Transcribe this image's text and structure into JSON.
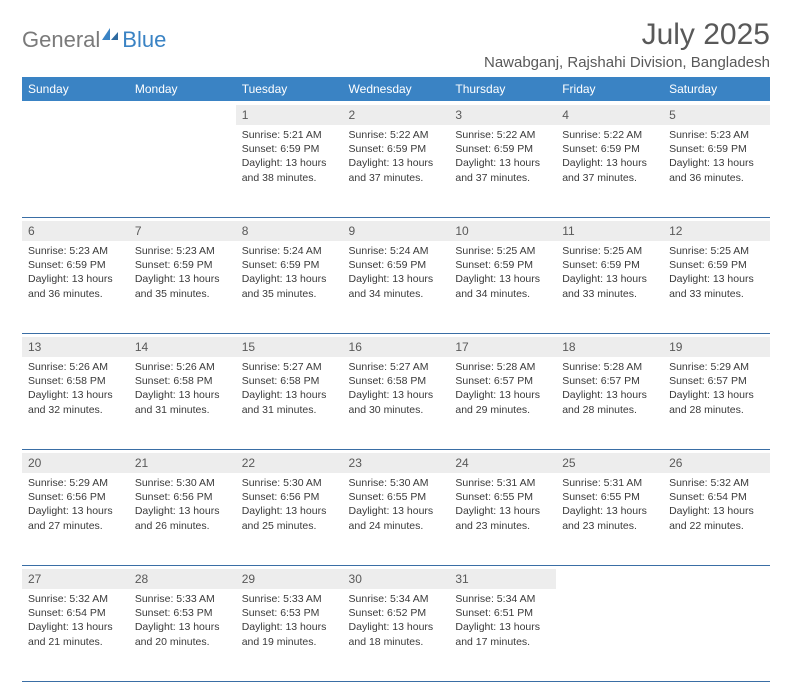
{
  "logo": {
    "text1": "General",
    "text2": "Blue"
  },
  "title": "July 2025",
  "location": "Nawabganj, Rajshahi Division, Bangladesh",
  "colors": {
    "header_bg": "#3a83c4",
    "header_text": "#ffffff",
    "daynum_bg": "#ededed",
    "text_gray": "#595959",
    "rule": "#3a6ea5"
  },
  "day_headers": [
    "Sunday",
    "Monday",
    "Tuesday",
    "Wednesday",
    "Thursday",
    "Friday",
    "Saturday"
  ],
  "weeks": [
    [
      null,
      null,
      {
        "n": "1",
        "sr": "5:21 AM",
        "ss": "6:59 PM",
        "dl": "13 hours and 38 minutes."
      },
      {
        "n": "2",
        "sr": "5:22 AM",
        "ss": "6:59 PM",
        "dl": "13 hours and 37 minutes."
      },
      {
        "n": "3",
        "sr": "5:22 AM",
        "ss": "6:59 PM",
        "dl": "13 hours and 37 minutes."
      },
      {
        "n": "4",
        "sr": "5:22 AM",
        "ss": "6:59 PM",
        "dl": "13 hours and 37 minutes."
      },
      {
        "n": "5",
        "sr": "5:23 AM",
        "ss": "6:59 PM",
        "dl": "13 hours and 36 minutes."
      }
    ],
    [
      {
        "n": "6",
        "sr": "5:23 AM",
        "ss": "6:59 PM",
        "dl": "13 hours and 36 minutes."
      },
      {
        "n": "7",
        "sr": "5:23 AM",
        "ss": "6:59 PM",
        "dl": "13 hours and 35 minutes."
      },
      {
        "n": "8",
        "sr": "5:24 AM",
        "ss": "6:59 PM",
        "dl": "13 hours and 35 minutes."
      },
      {
        "n": "9",
        "sr": "5:24 AM",
        "ss": "6:59 PM",
        "dl": "13 hours and 34 minutes."
      },
      {
        "n": "10",
        "sr": "5:25 AM",
        "ss": "6:59 PM",
        "dl": "13 hours and 34 minutes."
      },
      {
        "n": "11",
        "sr": "5:25 AM",
        "ss": "6:59 PM",
        "dl": "13 hours and 33 minutes."
      },
      {
        "n": "12",
        "sr": "5:25 AM",
        "ss": "6:59 PM",
        "dl": "13 hours and 33 minutes."
      }
    ],
    [
      {
        "n": "13",
        "sr": "5:26 AM",
        "ss": "6:58 PM",
        "dl": "13 hours and 32 minutes."
      },
      {
        "n": "14",
        "sr": "5:26 AM",
        "ss": "6:58 PM",
        "dl": "13 hours and 31 minutes."
      },
      {
        "n": "15",
        "sr": "5:27 AM",
        "ss": "6:58 PM",
        "dl": "13 hours and 31 minutes."
      },
      {
        "n": "16",
        "sr": "5:27 AM",
        "ss": "6:58 PM",
        "dl": "13 hours and 30 minutes."
      },
      {
        "n": "17",
        "sr": "5:28 AM",
        "ss": "6:57 PM",
        "dl": "13 hours and 29 minutes."
      },
      {
        "n": "18",
        "sr": "5:28 AM",
        "ss": "6:57 PM",
        "dl": "13 hours and 28 minutes."
      },
      {
        "n": "19",
        "sr": "5:29 AM",
        "ss": "6:57 PM",
        "dl": "13 hours and 28 minutes."
      }
    ],
    [
      {
        "n": "20",
        "sr": "5:29 AM",
        "ss": "6:56 PM",
        "dl": "13 hours and 27 minutes."
      },
      {
        "n": "21",
        "sr": "5:30 AM",
        "ss": "6:56 PM",
        "dl": "13 hours and 26 minutes."
      },
      {
        "n": "22",
        "sr": "5:30 AM",
        "ss": "6:56 PM",
        "dl": "13 hours and 25 minutes."
      },
      {
        "n": "23",
        "sr": "5:30 AM",
        "ss": "6:55 PM",
        "dl": "13 hours and 24 minutes."
      },
      {
        "n": "24",
        "sr": "5:31 AM",
        "ss": "6:55 PM",
        "dl": "13 hours and 23 minutes."
      },
      {
        "n": "25",
        "sr": "5:31 AM",
        "ss": "6:55 PM",
        "dl": "13 hours and 23 minutes."
      },
      {
        "n": "26",
        "sr": "5:32 AM",
        "ss": "6:54 PM",
        "dl": "13 hours and 22 minutes."
      }
    ],
    [
      {
        "n": "27",
        "sr": "5:32 AM",
        "ss": "6:54 PM",
        "dl": "13 hours and 21 minutes."
      },
      {
        "n": "28",
        "sr": "5:33 AM",
        "ss": "6:53 PM",
        "dl": "13 hours and 20 minutes."
      },
      {
        "n": "29",
        "sr": "5:33 AM",
        "ss": "6:53 PM",
        "dl": "13 hours and 19 minutes."
      },
      {
        "n": "30",
        "sr": "5:34 AM",
        "ss": "6:52 PM",
        "dl": "13 hours and 18 minutes."
      },
      {
        "n": "31",
        "sr": "5:34 AM",
        "ss": "6:51 PM",
        "dl": "13 hours and 17 minutes."
      },
      null,
      null
    ]
  ],
  "labels": {
    "sunrise": "Sunrise:",
    "sunset": "Sunset:",
    "daylight": "Daylight:"
  }
}
